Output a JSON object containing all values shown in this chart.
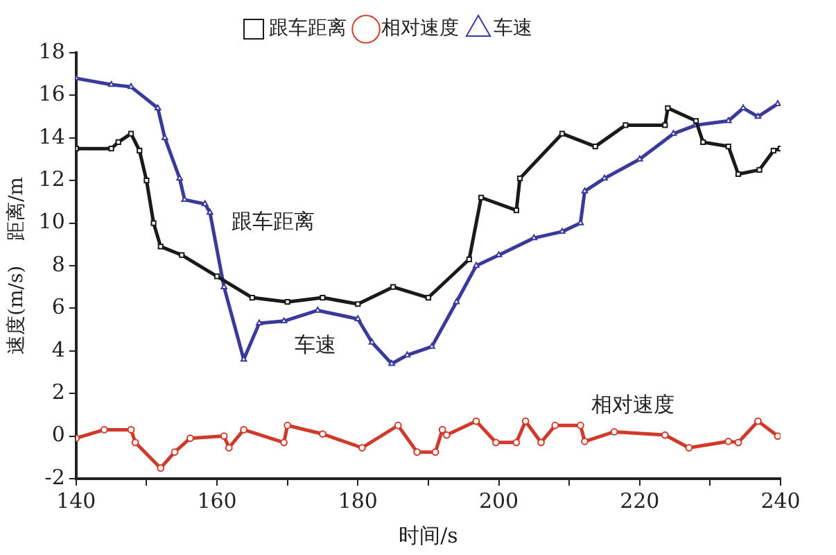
{
  "chart_data": {
    "type": "line",
    "xlabel": "时间/s",
    "ylabel": "速度(m/s)    距离/m",
    "xlim": [
      140,
      240
    ],
    "xticks": [
      140,
      {
        "value": 150,
        "label": null
      },
      160,
      {
        "value": 170,
        "label": null
      },
      180,
      {
        "value": 190,
        "label": null
      },
      200,
      {
        "value": 210,
        "label": null
      },
      220,
      {
        "value": 230,
        "label": null
      },
      240
    ],
    "ylim": [
      -2,
      18
    ],
    "yticks": [
      -2,
      0,
      2,
      4,
      6,
      8,
      10,
      12,
      14,
      16,
      18
    ],
    "grid": false,
    "legend": "top",
    "line_style": "solid",
    "series": [
      {
        "name": "跟车距离",
        "color": "#1a1a1a",
        "marker": "square",
        "x": [
          140,
          145,
          146,
          147.8,
          149,
          150,
          151,
          152,
          155,
          160,
          165,
          170,
          175,
          180,
          185,
          190,
          195.8,
          197.5,
          202.5,
          203,
          209,
          213.7,
          218,
          223.6,
          224,
          228,
          229,
          232.6,
          234,
          237,
          239,
          240
        ],
        "values": [
          13.5,
          13.5,
          13.8,
          14.2,
          13.4,
          12.0,
          10.0,
          8.9,
          8.5,
          7.5,
          6.5,
          6.3,
          6.5,
          6.2,
          7.0,
          6.5,
          8.3,
          11.2,
          10.6,
          12.1,
          14.2,
          13.6,
          14.6,
          14.6,
          15.4,
          14.8,
          13.8,
          13.6,
          12.3,
          12.5,
          13.4,
          13.5
        ]
      },
      {
        "name": "相对速度",
        "color": "#d03a2a",
        "marker": "circle",
        "x": [
          140,
          144,
          147.8,
          148.4,
          152,
          154,
          156.2,
          161,
          161.7,
          163.8,
          169.5,
          170,
          175,
          180.6,
          185.7,
          188.4,
          191,
          192,
          192.6,
          196.8,
          199.6,
          202.5,
          203.8,
          206,
          208,
          211.6,
          212.2,
          216.4,
          223.6,
          227,
          232.6,
          234,
          236.8,
          239.6
        ],
        "values": [
          -0.1,
          0.3,
          0.3,
          -0.3,
          -1.5,
          -0.75,
          -0.1,
          0,
          -0.55,
          0.3,
          -0.3,
          0.5,
          0.1,
          -0.55,
          0.5,
          -0.75,
          -0.75,
          0.3,
          0.05,
          0.7,
          -0.3,
          -0.3,
          0.7,
          -0.3,
          0.5,
          0.5,
          -0.25,
          0.2,
          0.05,
          -0.55,
          -0.25,
          -0.3,
          0.7,
          0
        ]
      },
      {
        "name": "车速",
        "color": "#3a3a9a",
        "marker": "triangle",
        "x": [
          140,
          145,
          147.8,
          151.6,
          152.6,
          154.7,
          155.4,
          158.3,
          159,
          161,
          163.8,
          166,
          169.5,
          174.3,
          180,
          182,
          184.8,
          187,
          190.5,
          194,
          196.8,
          200,
          205,
          209,
          211.6,
          212.2,
          215,
          220,
          224.8,
          228,
          232.6,
          234.7,
          236.8,
          239.6
        ],
        "values": [
          16.8,
          16.5,
          16.4,
          15.4,
          14.0,
          12.1,
          11.1,
          10.9,
          10.5,
          7.0,
          3.6,
          5.3,
          5.4,
          5.9,
          5.5,
          4.4,
          3.4,
          3.8,
          4.2,
          6.3,
          8.0,
          8.5,
          9.3,
          9.6,
          10.0,
          11.5,
          12.1,
          13.0,
          14.2,
          14.6,
          14.8,
          15.4,
          15.0,
          15.6
        ]
      }
    ],
    "annotations": [
      "跟车距离",
      "车速",
      "相对速度"
    ]
  }
}
